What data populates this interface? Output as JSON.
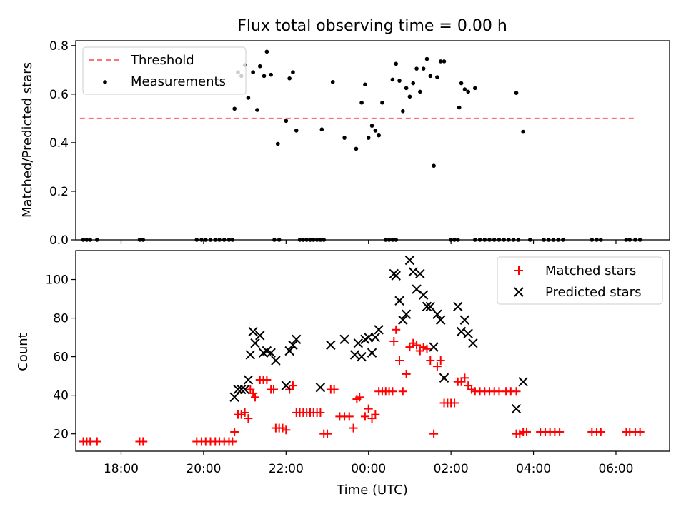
{
  "title": "Flux total observing time = 0.00 h",
  "chart_data": [
    {
      "type": "scatter",
      "ylabel": "Matched/Predicted stars",
      "ylim": [
        0,
        0.82
      ],
      "yticks": [
        "0.0",
        "0.2",
        "0.4",
        "0.6",
        "0.8"
      ],
      "xlim_hours_from_midnight": [
        -7.1,
        7.3
      ],
      "legend": {
        "placement": "top-left",
        "entries": [
          {
            "label": "Threshold",
            "style": "dashed-line",
            "color": "#ff7070"
          },
          {
            "label": "Measurements",
            "style": "dot",
            "color": "#000000"
          }
        ]
      },
      "threshold": {
        "value": 0.5,
        "from": "17:00",
        "to": "06:30",
        "color": "#ff7070"
      },
      "measurements": [
        [
          "17:05",
          0
        ],
        [
          "17:10",
          0
        ],
        [
          "17:15",
          0
        ],
        [
          "17:25",
          0
        ],
        [
          "18:27",
          0
        ],
        [
          "18:32",
          0
        ],
        [
          "19:50",
          0
        ],
        [
          "19:57",
          0
        ],
        [
          "20:03",
          0
        ],
        [
          "20:10",
          0
        ],
        [
          "20:17",
          0
        ],
        [
          "20:23",
          0
        ],
        [
          "20:30",
          0
        ],
        [
          "20:37",
          0
        ],
        [
          "20:42",
          0
        ],
        [
          "20:45",
          0.54
        ],
        [
          "20:50",
          0.69
        ],
        [
          "20:55",
          0.675
        ],
        [
          "21:00",
          0.72
        ],
        [
          "21:05",
          0.585
        ],
        [
          "21:12",
          0.69
        ],
        [
          "21:18",
          0.535
        ],
        [
          "21:22",
          0.715
        ],
        [
          "21:28",
          0.675
        ],
        [
          "21:32",
          0.775
        ],
        [
          "21:38",
          0.68
        ],
        [
          "21:43",
          0
        ],
        [
          "21:48",
          0.395
        ],
        [
          "21:50",
          0
        ],
        [
          "22:00",
          0.49
        ],
        [
          "22:05",
          0.665
        ],
        [
          "22:10",
          0.69
        ],
        [
          "22:15",
          0.45
        ],
        [
          "22:20",
          0
        ],
        [
          "22:25",
          0
        ],
        [
          "22:30",
          0
        ],
        [
          "22:35",
          0
        ],
        [
          "22:40",
          0
        ],
        [
          "22:45",
          0
        ],
        [
          "22:50",
          0
        ],
        [
          "22:55",
          0
        ],
        [
          "22:52",
          0.455
        ],
        [
          "23:08",
          0.65
        ],
        [
          "23:25",
          0.42
        ],
        [
          "23:42",
          0.375
        ],
        [
          "23:50",
          0.565
        ],
        [
          "23:55",
          0.64
        ],
        [
          "00:00",
          0.42
        ],
        [
          "00:05",
          0.47
        ],
        [
          "00:10",
          0.45
        ],
        [
          "00:15",
          0.43
        ],
        [
          "00:20",
          0.565
        ],
        [
          "00:25",
          0
        ],
        [
          "00:30",
          0
        ],
        [
          "00:35",
          0
        ],
        [
          "00:40",
          0
        ],
        [
          "00:35",
          0.66
        ],
        [
          "00:40",
          0.725
        ],
        [
          "00:45",
          0.655
        ],
        [
          "00:50",
          0.53
        ],
        [
          "00:55",
          0.625
        ],
        [
          "01:00",
          0.59
        ],
        [
          "01:05",
          0.645
        ],
        [
          "01:10",
          0.705
        ],
        [
          "01:15",
          0.61
        ],
        [
          "01:20",
          0.705
        ],
        [
          "01:25",
          0.745
        ],
        [
          "01:30",
          0.675
        ],
        [
          "01:35",
          0.305
        ],
        [
          "01:40",
          0.67
        ],
        [
          "01:45",
          0.735
        ],
        [
          "01:50",
          0.735
        ],
        [
          "02:00",
          0
        ],
        [
          "02:05",
          0
        ],
        [
          "02:10",
          0
        ],
        [
          "02:12",
          0.545
        ],
        [
          "02:15",
          0.645
        ],
        [
          "02:20",
          0.62
        ],
        [
          "02:25",
          0.61
        ],
        [
          "02:35",
          0.625
        ],
        [
          "02:35",
          0
        ],
        [
          "02:42",
          0
        ],
        [
          "02:49",
          0
        ],
        [
          "02:56",
          0
        ],
        [
          "03:03",
          0
        ],
        [
          "03:10",
          0
        ],
        [
          "03:17",
          0
        ],
        [
          "03:24",
          0
        ],
        [
          "03:31",
          0
        ],
        [
          "03:38",
          0
        ],
        [
          "03:35",
          0.605
        ],
        [
          "03:45",
          0.445
        ],
        [
          "03:55",
          0
        ],
        [
          "04:15",
          0
        ],
        [
          "04:22",
          0
        ],
        [
          "04:29",
          0
        ],
        [
          "04:36",
          0
        ],
        [
          "04:43",
          0
        ],
        [
          "05:25",
          0
        ],
        [
          "05:32",
          0
        ],
        [
          "05:38",
          0
        ],
        [
          "06:15",
          0
        ],
        [
          "06:20",
          0
        ],
        [
          "06:28",
          0
        ],
        [
          "06:35",
          0
        ]
      ]
    },
    {
      "type": "scatter",
      "ylabel": "Count",
      "xlabel": "Time (UTC)",
      "ylim": [
        11,
        115
      ],
      "yticks": [
        "20",
        "40",
        "60",
        "80",
        "100"
      ],
      "xticks": [
        "18:00",
        "20:00",
        "22:00",
        "00:00",
        "02:00",
        "04:00",
        "06:00"
      ],
      "legend": {
        "placement": "top-right",
        "entries": [
          {
            "label": "Matched stars",
            "style": "plus",
            "color": "#ff0000"
          },
          {
            "label": "Predicted stars",
            "style": "x",
            "color": "#000000"
          }
        ]
      },
      "series": [
        {
          "name": "Matched stars",
          "marker": "plus",
          "color": "#ff0000",
          "points": [
            [
              "17:05",
              16
            ],
            [
              "17:10",
              16
            ],
            [
              "17:15",
              16
            ],
            [
              "17:25",
              16
            ],
            [
              "18:27",
              16
            ],
            [
              "18:32",
              16
            ],
            [
              "19:50",
              16
            ],
            [
              "19:57",
              16
            ],
            [
              "20:03",
              16
            ],
            [
              "20:10",
              16
            ],
            [
              "20:17",
              16
            ],
            [
              "20:23",
              16
            ],
            [
              "20:30",
              16
            ],
            [
              "20:37",
              16
            ],
            [
              "20:42",
              16
            ],
            [
              "20:45",
              21
            ],
            [
              "20:50",
              30
            ],
            [
              "20:55",
              30
            ],
            [
              "21:00",
              31
            ],
            [
              "21:05",
              28
            ],
            [
              "21:08",
              43
            ],
            [
              "21:12",
              41
            ],
            [
              "21:15",
              39
            ],
            [
              "21:22",
              48
            ],
            [
              "21:27",
              48
            ],
            [
              "21:32",
              48
            ],
            [
              "21:38",
              43
            ],
            [
              "21:42",
              43
            ],
            [
              "21:45",
              23
            ],
            [
              "21:50",
              23
            ],
            [
              "21:55",
              23
            ],
            [
              "22:00",
              22
            ],
            [
              "22:05",
              43
            ],
            [
              "22:10",
              45
            ],
            [
              "22:15",
              31
            ],
            [
              "22:20",
              31
            ],
            [
              "22:25",
              31
            ],
            [
              "22:30",
              31
            ],
            [
              "22:35",
              31
            ],
            [
              "22:40",
              31
            ],
            [
              "22:45",
              31
            ],
            [
              "22:50",
              31
            ],
            [
              "22:55",
              20
            ],
            [
              "23:00",
              20
            ],
            [
              "23:05",
              43
            ],
            [
              "23:10",
              43
            ],
            [
              "23:18",
              29
            ],
            [
              "23:25",
              29
            ],
            [
              "23:32",
              29
            ],
            [
              "23:38",
              23
            ],
            [
              "23:43",
              38
            ],
            [
              "23:47",
              39
            ],
            [
              "23:55",
              29
            ],
            [
              "00:00",
              33
            ],
            [
              "00:05",
              28
            ],
            [
              "00:10",
              30
            ],
            [
              "00:15",
              42
            ],
            [
              "00:20",
              42
            ],
            [
              "00:25",
              42
            ],
            [
              "00:30",
              42
            ],
            [
              "00:35",
              42
            ],
            [
              "00:37",
              68
            ],
            [
              "00:40",
              74
            ],
            [
              "00:45",
              58
            ],
            [
              "00:50",
              42
            ],
            [
              "00:55",
              51
            ],
            [
              "01:00",
              65
            ],
            [
              "01:05",
              67
            ],
            [
              "01:10",
              66
            ],
            [
              "01:15",
              63
            ],
            [
              "01:20",
              65
            ],
            [
              "01:25",
              64
            ],
            [
              "01:30",
              58
            ],
            [
              "01:35",
              20
            ],
            [
              "01:40",
              55
            ],
            [
              "01:45",
              58
            ],
            [
              "01:50",
              36
            ],
            [
              "01:55",
              36
            ],
            [
              "02:00",
              36
            ],
            [
              "02:05",
              36
            ],
            [
              "02:10",
              47
            ],
            [
              "02:15",
              47
            ],
            [
              "02:20",
              49
            ],
            [
              "02:25",
              45
            ],
            [
              "02:30",
              43
            ],
            [
              "02:35",
              42
            ],
            [
              "02:42",
              42
            ],
            [
              "02:49",
              42
            ],
            [
              "02:56",
              42
            ],
            [
              "03:03",
              42
            ],
            [
              "03:10",
              42
            ],
            [
              "03:20",
              42
            ],
            [
              "03:27",
              42
            ],
            [
              "03:35",
              42
            ],
            [
              "03:35",
              20
            ],
            [
              "03:40",
              20
            ],
            [
              "03:45",
              21
            ],
            [
              "03:50",
              21
            ],
            [
              "04:10",
              21
            ],
            [
              "04:17",
              21
            ],
            [
              "04:24",
              21
            ],
            [
              "04:31",
              21
            ],
            [
              "04:38",
              21
            ],
            [
              "05:25",
              21
            ],
            [
              "05:32",
              21
            ],
            [
              "05:38",
              21
            ],
            [
              "06:15",
              21
            ],
            [
              "06:20",
              21
            ],
            [
              "06:28",
              21
            ],
            [
              "06:35",
              21
            ]
          ]
        },
        {
          "name": "Predicted stars",
          "marker": "x",
          "color": "#000000",
          "points": [
            [
              "20:45",
              39
            ],
            [
              "20:50",
              43
            ],
            [
              "20:55",
              43
            ],
            [
              "21:00",
              43
            ],
            [
              "21:05",
              48
            ],
            [
              "21:08",
              61
            ],
            [
              "21:12",
              73
            ],
            [
              "21:15",
              67
            ],
            [
              "21:22",
              71
            ],
            [
              "21:27",
              62
            ],
            [
              "21:32",
              63
            ],
            [
              "21:38",
              62
            ],
            [
              "21:45",
              58
            ],
            [
              "22:00",
              45
            ],
            [
              "22:05",
              63
            ],
            [
              "22:10",
              66
            ],
            [
              "22:15",
              69
            ],
            [
              "22:50",
              44
            ],
            [
              "23:05",
              66
            ],
            [
              "23:25",
              69
            ],
            [
              "23:40",
              61
            ],
            [
              "23:45",
              67
            ],
            [
              "23:50",
              60
            ],
            [
              "23:55",
              69
            ],
            [
              "00:00",
              70
            ],
            [
              "00:05",
              62
            ],
            [
              "00:10",
              70
            ],
            [
              "00:15",
              74
            ],
            [
              "00:37",
              103
            ],
            [
              "00:40",
              102
            ],
            [
              "00:45",
              89
            ],
            [
              "00:50",
              79
            ],
            [
              "00:55",
              82
            ],
            [
              "01:00",
              110
            ],
            [
              "01:05",
              104
            ],
            [
              "01:10",
              95
            ],
            [
              "01:15",
              103
            ],
            [
              "01:20",
              92
            ],
            [
              "01:25",
              86
            ],
            [
              "01:30",
              86
            ],
            [
              "01:35",
              65
            ],
            [
              "01:40",
              82
            ],
            [
              "01:45",
              79
            ],
            [
              "01:50",
              49
            ],
            [
              "02:10",
              86
            ],
            [
              "02:15",
              73
            ],
            [
              "02:20",
              79
            ],
            [
              "02:25",
              72
            ],
            [
              "02:32",
              67
            ],
            [
              "03:35",
              33
            ],
            [
              "03:45",
              47
            ]
          ]
        }
      ]
    }
  ]
}
